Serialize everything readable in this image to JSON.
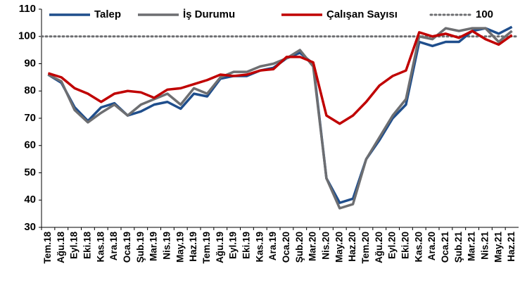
{
  "chart_data": {
    "type": "line",
    "categories": [
      "Tem.18",
      "Ağu.18",
      "Eyl.18",
      "Eki.18",
      "Kas.18",
      "Ara.18",
      "Oca.19",
      "Şub.19",
      "Mar.19",
      "Nis.19",
      "May.19",
      "Haz.19",
      "Tem.19",
      "Ağu.19",
      "Eyl.19",
      "Eki.19",
      "Kas.19",
      "Ara.19",
      "Oca.20",
      "Şub.20",
      "Mar.20",
      "Nis.20",
      "May.20",
      "Haz.20",
      "Tem.20",
      "Ağu.20",
      "Eyl.20",
      "Eki.20",
      "Kas.20",
      "Ara.20",
      "Oca.21",
      "Şub.21",
      "Mar.21",
      "Nis.21",
      "May.21",
      "Haz.21"
    ],
    "series": [
      {
        "name": "Talep",
        "color": "#1f4e8c",
        "values": [
          86,
          83,
          74,
          69,
          74,
          75.5,
          71,
          72.5,
          75,
          76,
          73.5,
          79,
          78,
          84.5,
          85.5,
          85.5,
          87.5,
          88.5,
          92,
          94,
          90,
          48,
          39,
          40.5,
          55,
          62,
          70,
          75,
          98,
          96.5,
          98,
          98,
          102,
          103,
          101,
          103.5
        ]
      },
      {
        "name": "İş Durumu",
        "color": "#6d6e71",
        "values": [
          86,
          83.5,
          73,
          68.5,
          72,
          75,
          71,
          75,
          77,
          79,
          75,
          81,
          79,
          85,
          87,
          87,
          89,
          90,
          92,
          95,
          89,
          48,
          37,
          38.5,
          55,
          63,
          71,
          77,
          100,
          99,
          103,
          102,
          103,
          103,
          98,
          102
        ]
      },
      {
        "name": "Çalışan Sayısı",
        "color": "#c00000",
        "values": [
          86.5,
          85,
          81,
          79,
          76,
          79,
          80,
          79.5,
          77.5,
          80.5,
          81,
          82.5,
          84,
          86,
          85.5,
          86,
          87.5,
          88,
          92.5,
          92.5,
          90.5,
          71,
          68,
          71,
          76,
          82,
          85.5,
          87.5,
          101.5,
          100,
          101,
          99.5,
          102,
          99,
          97,
          100.5
        ]
      }
    ],
    "reference_line": {
      "name": "100",
      "value": 100,
      "color": "#6d6e71"
    },
    "ylim": [
      30,
      110
    ],
    "yticks": [
      30,
      40,
      50,
      60,
      70,
      80,
      90,
      100,
      110
    ]
  }
}
